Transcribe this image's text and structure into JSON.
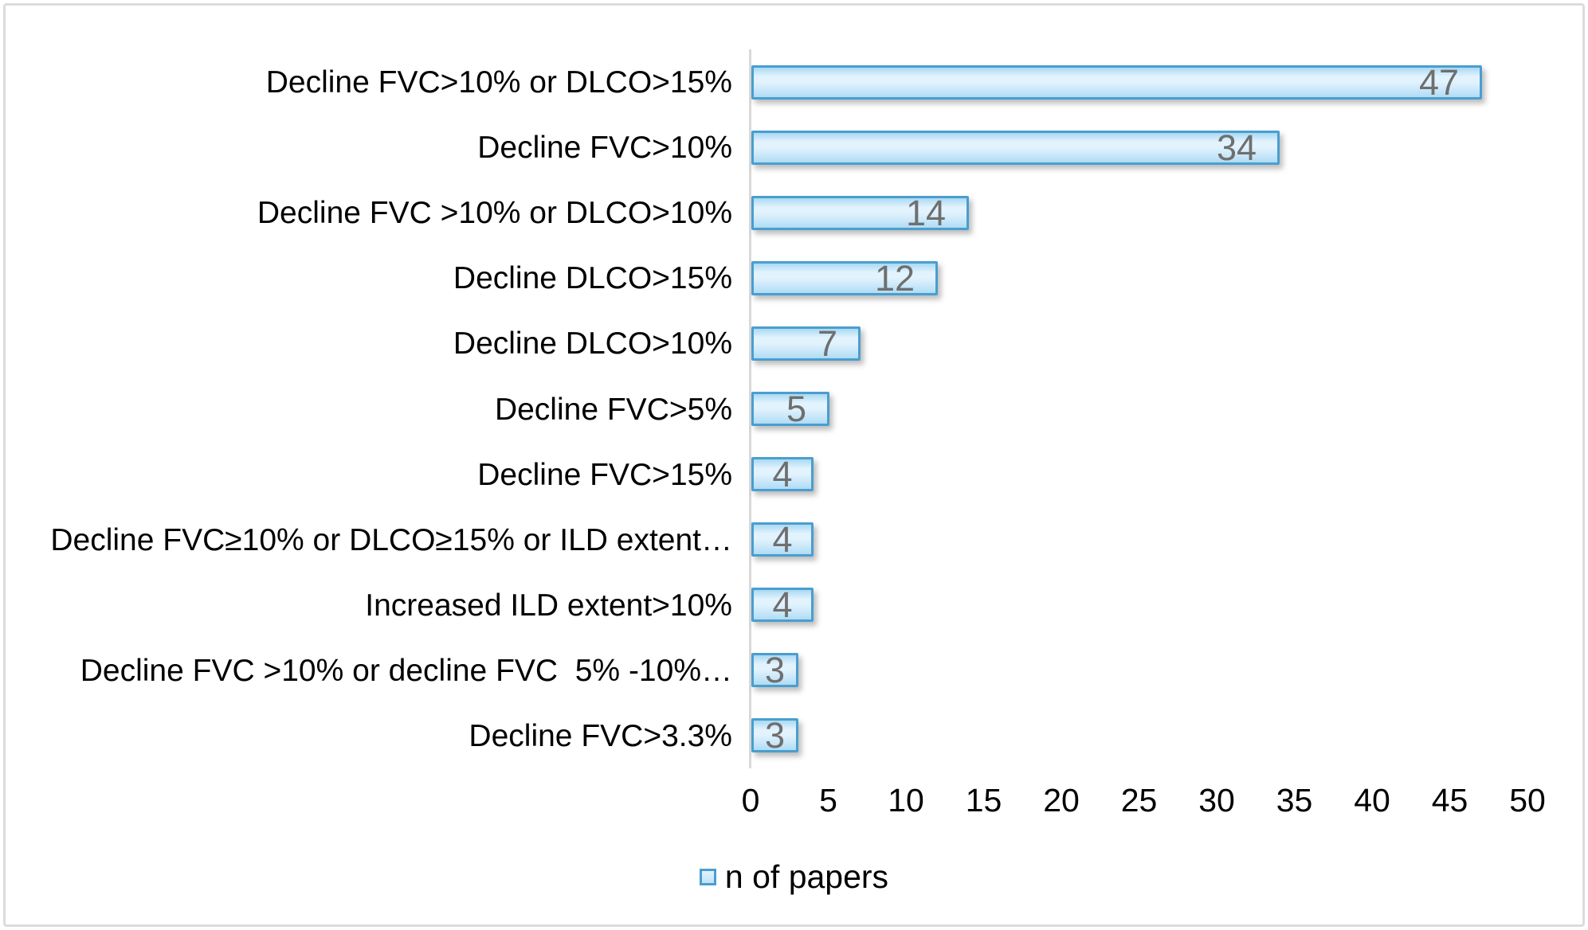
{
  "chart_data": {
    "type": "bar",
    "orientation": "horizontal",
    "title": "",
    "xlabel": "",
    "ylabel": "",
    "categories": [
      "Decline FVC>10% or DLCO>15%",
      "Decline FVC>10%",
      "Decline FVC >10% or DLCO>10%",
      "Decline DLCO>15%",
      "Decline DLCO>10%",
      "Decline FVC>5%",
      "Decline FVC>15%",
      "Decline FVC≥10% or DLCO≥15% or ILD extent…",
      "Increased ILD extent>10%",
      "Decline FVC >10% or decline FVC  5% -10%…",
      "Decline FVC>3.3%"
    ],
    "series": [
      {
        "name": "n of papers",
        "values": [
          47,
          34,
          14,
          12,
          7,
          5,
          4,
          4,
          4,
          3,
          3
        ]
      }
    ],
    "value_labels_shown": true,
    "xlim": [
      0,
      50
    ],
    "x_ticks": [
      0,
      5,
      10,
      15,
      20,
      25,
      30,
      35,
      40,
      45,
      50
    ],
    "grid": false,
    "legend_position": "bottom-center"
  },
  "legend": {
    "items": [
      {
        "label": "n of papers",
        "swatch_fill": "#BFE3F7",
        "swatch_border": "#4A9ECF"
      }
    ]
  },
  "colors": {
    "bar_border": "#4A9ECF",
    "bar_gradient_top": "#A9D9F3",
    "bar_gradient_light": "#E2F3FD",
    "bar_gradient_mid": "#CDE9FA",
    "bar_gradient_bottom": "#AEDCF5",
    "value_label": "#6F6F6F",
    "axis_line": "#D9D9D9",
    "text": "#000000",
    "frame_border": "#DCDCDC"
  }
}
